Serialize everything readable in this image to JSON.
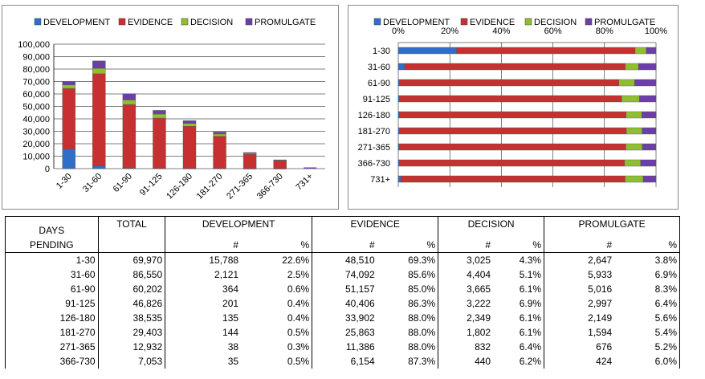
{
  "chart_data": [
    {
      "type": "bar",
      "stacked": true,
      "categories": [
        "1-30",
        "31-60",
        "61-90",
        "91-125",
        "126-180",
        "181-270",
        "271-365",
        "366-730",
        "731+"
      ],
      "series": [
        {
          "name": "DEVELOPMENT",
          "color": "#2f6fc7",
          "values": [
            15788,
            2121,
            364,
            201,
            135,
            144,
            38,
            35,
            0
          ]
        },
        {
          "name": "EVIDENCE",
          "color": "#c73030",
          "values": [
            48510,
            74092,
            51157,
            40406,
            33902,
            25863,
            11386,
            6154,
            0
          ]
        },
        {
          "name": "DECISION",
          "color": "#8fbf2f",
          "values": [
            3025,
            4404,
            3665,
            3222,
            2349,
            1802,
            832,
            440,
            0
          ]
        },
        {
          "name": "PROMULGATE",
          "color": "#6c3fa8",
          "values": [
            2647,
            5933,
            5016,
            2997,
            2149,
            1594,
            676,
            424,
            0
          ]
        }
      ],
      "ylim": [
        0,
        100000
      ],
      "yticks": [
        "0",
        "10,000",
        "20,000",
        "30,000",
        "40,000",
        "50,000",
        "60,000",
        "70,000",
        "80,000",
        "90,000",
        "100,000"
      ],
      "legend": "top",
      "grid": true
    },
    {
      "type": "bar",
      "orientation": "horizontal",
      "stacked": "percent",
      "categories": [
        "1-30",
        "31-60",
        "61-90",
        "91-125",
        "126-180",
        "181-270",
        "271-365",
        "366-730",
        "731+"
      ],
      "series": [
        {
          "name": "DEVELOPMENT",
          "color": "#2f6fc7",
          "values": [
            22.6,
            2.5,
            0.6,
            0.4,
            0.4,
            0.5,
            0.3,
            0.5,
            1
          ]
        },
        {
          "name": "EVIDENCE",
          "color": "#c73030",
          "values": [
            69.3,
            85.6,
            85.0,
            86.3,
            88.0,
            88.0,
            88.0,
            87.3,
            87
          ]
        },
        {
          "name": "DECISION",
          "color": "#8fbf2f",
          "values": [
            4.3,
            5.1,
            6.1,
            6.9,
            6.1,
            6.1,
            6.4,
            6.2,
            7
          ]
        },
        {
          "name": "PROMULGATE",
          "color": "#6c3fa8",
          "values": [
            3.8,
            6.9,
            8.3,
            6.4,
            5.6,
            5.4,
            5.2,
            6.0,
            5
          ]
        }
      ],
      "xticks": [
        "0%",
        "20%",
        "40%",
        "60%",
        "80%",
        "100%"
      ],
      "legend": "top",
      "grid": true
    }
  ],
  "table": {
    "header": {
      "days": "DAYS",
      "pending": "PENDING",
      "total": "TOTAL",
      "development": "DEVELOPMENT",
      "evidence": "EVIDENCE",
      "decision": "DECISION",
      "promulgate": "PROMULGATE",
      "num": "#",
      "pct": "%"
    },
    "rows": [
      [
        "1-30",
        "69,970",
        "15,788",
        "22.6%",
        "48,510",
        "69.3%",
        "3,025",
        "4.3%",
        "2,647",
        "3.8%"
      ],
      [
        "31-60",
        "86,550",
        "2,121",
        "2.5%",
        "74,092",
        "85.6%",
        "4,404",
        "5.1%",
        "5,933",
        "6.9%"
      ],
      [
        "61-90",
        "60,202",
        "364",
        "0.6%",
        "51,157",
        "85.0%",
        "3,665",
        "6.1%",
        "5,016",
        "8.3%"
      ],
      [
        "91-125",
        "46,826",
        "201",
        "0.4%",
        "40,406",
        "86.3%",
        "3,222",
        "6.9%",
        "2,997",
        "6.4%"
      ],
      [
        "126-180",
        "38,535",
        "135",
        "0.4%",
        "33,902",
        "88.0%",
        "2,349",
        "6.1%",
        "2,149",
        "5.6%"
      ],
      [
        "181-270",
        "29,403",
        "144",
        "0.5%",
        "25,863",
        "88.0%",
        "1,802",
        "6.1%",
        "1,594",
        "5.4%"
      ],
      [
        "271-365",
        "12,932",
        "38",
        "0.3%",
        "11,386",
        "88.0%",
        "832",
        "6.4%",
        "676",
        "5.2%"
      ],
      [
        "366-730",
        "7,053",
        "35",
        "0.5%",
        "6,154",
        "87.3%",
        "440",
        "6.2%",
        "424",
        "6.0%"
      ]
    ]
  }
}
